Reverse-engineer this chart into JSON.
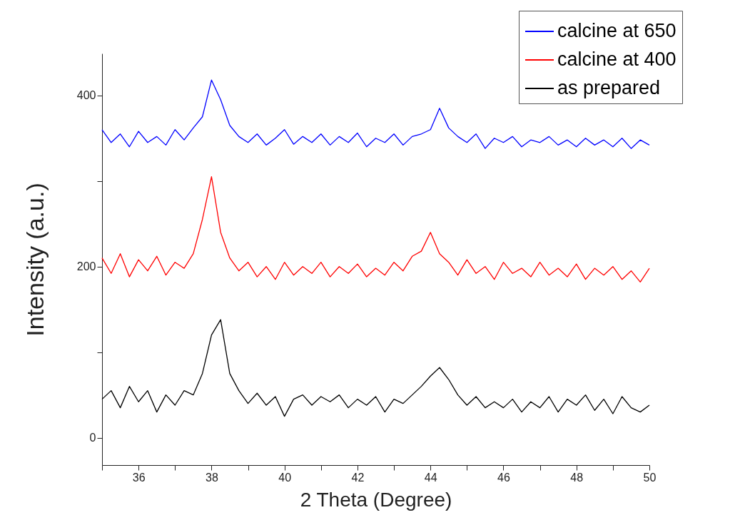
{
  "chart_data": {
    "type": "line",
    "xlabel": "2 Theta (Degree)",
    "ylabel": "Intensity (a.u.)",
    "x": [
      35,
      35.25,
      35.5,
      35.75,
      36,
      36.25,
      36.5,
      36.75,
      37,
      37.25,
      37.5,
      37.75,
      38,
      38.25,
      38.5,
      38.75,
      39,
      39.25,
      39.5,
      39.75,
      40,
      40.25,
      40.5,
      40.75,
      41,
      41.25,
      41.5,
      41.75,
      42,
      42.25,
      42.5,
      42.75,
      43,
      43.25,
      43.5,
      43.75,
      44,
      44.25,
      44.5,
      44.75,
      45,
      45.25,
      45.5,
      45.75,
      46,
      46.25,
      46.5,
      46.75,
      47,
      47.25,
      47.5,
      47.75,
      48,
      48.25,
      48.5,
      48.75,
      49,
      49.25,
      49.5,
      49.75,
      50
    ],
    "series": [
      {
        "name": "calcine at 650",
        "color": "#0000ff",
        "values": [
          360,
          345,
          355,
          340,
          358,
          345,
          352,
          342,
          360,
          348,
          362,
          375,
          418,
          395,
          365,
          352,
          345,
          355,
          342,
          350,
          360,
          343,
          352,
          345,
          355,
          342,
          352,
          345,
          356,
          340,
          350,
          345,
          355,
          342,
          352,
          355,
          360,
          385,
          362,
          352,
          345,
          355,
          338,
          350,
          345,
          352,
          340,
          348,
          345,
          352,
          342,
          348,
          340,
          350,
          342,
          348,
          340,
          350,
          338,
          348,
          342
        ]
      },
      {
        "name": "calcine at 400",
        "color": "#ff0000",
        "values": [
          210,
          192,
          215,
          188,
          208,
          195,
          212,
          190,
          205,
          198,
          215,
          255,
          305,
          240,
          210,
          195,
          205,
          188,
          200,
          185,
          205,
          190,
          200,
          192,
          205,
          188,
          200,
          192,
          203,
          188,
          198,
          190,
          205,
          195,
          212,
          218,
          240,
          215,
          205,
          190,
          208,
          192,
          200,
          185,
          205,
          192,
          198,
          188,
          205,
          190,
          198,
          188,
          203,
          185,
          198,
          190,
          200,
          185,
          195,
          182,
          198
        ]
      },
      {
        "name": "as prepared",
        "color": "#000000",
        "values": [
          45,
          55,
          35,
          60,
          42,
          55,
          30,
          50,
          38,
          55,
          50,
          75,
          120,
          138,
          75,
          55,
          40,
          52,
          38,
          48,
          25,
          45,
          50,
          38,
          48,
          42,
          50,
          35,
          45,
          38,
          48,
          30,
          45,
          40,
          50,
          60,
          72,
          82,
          68,
          50,
          38,
          48,
          35,
          42,
          35,
          45,
          30,
          42,
          35,
          48,
          30,
          45,
          38,
          50,
          32,
          45,
          28,
          48,
          35,
          30,
          38
        ]
      }
    ],
    "xlim": [
      35,
      50
    ],
    "ylim": [
      -32,
      449
    ],
    "xticks": [
      {
        "value": 35,
        "label": null
      },
      36,
      {
        "value": 37,
        "label": null
      },
      38,
      {
        "value": 39,
        "label": null
      },
      40,
      {
        "value": 41,
        "label": null
      },
      42,
      {
        "value": 43,
        "label": null
      },
      44,
      {
        "value": 45,
        "label": null
      },
      46,
      {
        "value": 47,
        "label": null
      },
      48,
      {
        "value": 49,
        "label": null
      },
      50
    ],
    "yticks": [
      0,
      {
        "value": 100,
        "label": null
      },
      200,
      {
        "value": 300,
        "label": null
      },
      400
    ],
    "grid": false,
    "legend": "top right",
    "line_style": "solid",
    "marker": "none"
  }
}
